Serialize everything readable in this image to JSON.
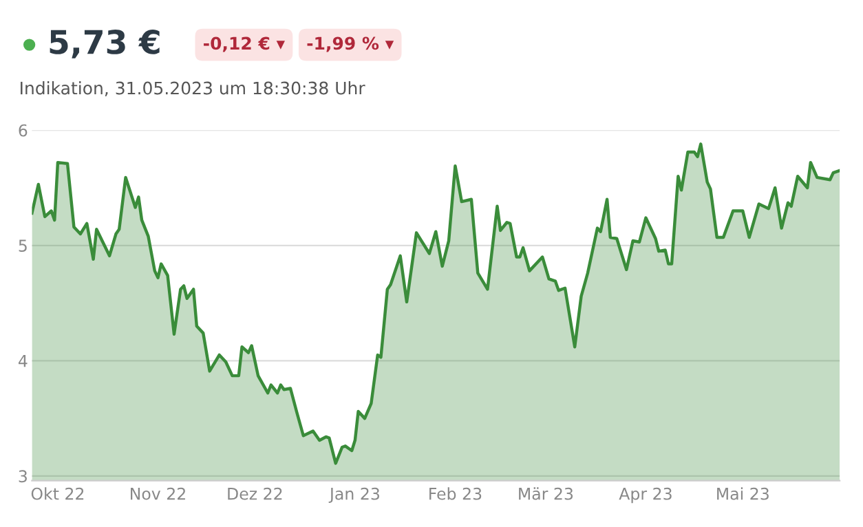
{
  "chart_data": {
    "type": "area",
    "title": "5,73 €",
    "subtitle": "Indikation, 31.05.2023 um 18:30:38 Uhr",
    "annotations": [
      "-0,12 € ▾",
      "-1,99 % ▾"
    ],
    "x": [
      "2022-09-23",
      "2022-09-25",
      "2022-09-27",
      "2022-09-29",
      "2022-09-30",
      "2022-10-01",
      "2022-10-04",
      "2022-10-06",
      "2022-10-08",
      "2022-10-10",
      "2022-10-12",
      "2022-10-13",
      "2022-10-17",
      "2022-10-19",
      "2022-10-20",
      "2022-10-22",
      "2022-10-25",
      "2022-10-26",
      "2022-10-27",
      "2022-10-29",
      "2022-10-31",
      "2022-11-01",
      "2022-11-02",
      "2022-11-04",
      "2022-11-06",
      "2022-11-08",
      "2022-11-09",
      "2022-11-10",
      "2022-11-12",
      "2022-11-13",
      "2022-11-15",
      "2022-11-17",
      "2022-11-20",
      "2022-11-22",
      "2022-11-24",
      "2022-11-26",
      "2022-11-27",
      "2022-11-29",
      "2022-11-30",
      "2022-12-02",
      "2022-12-05",
      "2022-12-06",
      "2022-12-08",
      "2022-12-09",
      "2022-12-10",
      "2022-12-12",
      "2022-12-14",
      "2022-12-16",
      "2022-12-19",
      "2022-12-21",
      "2022-12-23",
      "2022-12-24",
      "2022-12-26",
      "2022-12-28",
      "2022-12-29",
      "2022-12-31",
      "2023-01-01",
      "2023-01-02",
      "2023-01-04",
      "2023-01-06",
      "2023-01-08",
      "2023-01-09",
      "2023-01-11",
      "2023-01-12",
      "2023-01-15",
      "2023-01-17",
      "2023-01-20",
      "2023-01-24",
      "2023-01-26",
      "2023-01-28",
      "2023-01-30",
      "2023-02-01",
      "2023-02-03",
      "2023-02-06",
      "2023-02-08",
      "2023-02-11",
      "2023-02-14",
      "2023-02-15",
      "2023-02-17",
      "2023-02-18",
      "2023-02-20",
      "2023-02-21",
      "2023-02-22",
      "2023-02-24",
      "2023-02-28",
      "2023-03-02",
      "2023-03-04",
      "2023-03-05",
      "2023-03-07",
      "2023-03-10",
      "2023-03-12",
      "2023-03-14",
      "2023-03-17",
      "2023-03-18",
      "2023-03-20",
      "2023-03-21",
      "2023-03-23",
      "2023-03-26",
      "2023-03-28",
      "2023-03-30",
      "2023-04-01",
      "2023-04-04",
      "2023-04-05",
      "2023-04-07",
      "2023-04-08",
      "2023-04-09",
      "2023-04-11",
      "2023-04-12",
      "2023-04-14",
      "2023-04-16",
      "2023-04-17",
      "2023-04-18",
      "2023-04-20",
      "2023-04-21",
      "2023-04-23",
      "2023-04-25",
      "2023-04-28",
      "2023-05-01",
      "2023-05-03",
      "2023-05-06",
      "2023-05-09",
      "2023-05-11",
      "2023-05-13",
      "2023-05-15",
      "2023-05-16",
      "2023-05-18",
      "2023-05-21",
      "2023-05-22",
      "2023-05-24",
      "2023-05-28",
      "2023-05-29",
      "2023-05-31"
    ],
    "series": [
      {
        "color": "#3a8c3a",
        "values": [
          5.28,
          5.53,
          5.25,
          5.3,
          5.22,
          5.72,
          5.71,
          5.16,
          5.1,
          5.19,
          4.88,
          5.14,
          4.91,
          5.1,
          5.14,
          5.59,
          5.33,
          5.42,
          5.22,
          5.08,
          4.78,
          4.72,
          4.84,
          4.74,
          4.23,
          4.62,
          4.65,
          4.54,
          4.62,
          4.3,
          4.24,
          3.91,
          4.05,
          3.99,
          3.87,
          3.87,
          4.12,
          4.07,
          4.13,
          3.87,
          3.72,
          3.79,
          3.72,
          3.79,
          3.75,
          3.76,
          3.55,
          3.35,
          3.39,
          3.31,
          3.34,
          3.33,
          3.11,
          3.25,
          3.26,
          3.22,
          3.31,
          3.56,
          3.5,
          3.63,
          4.05,
          4.03,
          4.62,
          4.66,
          4.91,
          4.51,
          5.11,
          4.93,
          5.12,
          4.82,
          5.04,
          5.69,
          5.38,
          5.4,
          4.76,
          4.62,
          5.34,
          5.13,
          5.2,
          5.19,
          4.9,
          4.9,
          4.98,
          4.78,
          4.9,
          4.71,
          4.69,
          4.61,
          4.63,
          4.12,
          4.56,
          4.76,
          5.15,
          5.12,
          5.4,
          5.07,
          5.06,
          4.79,
          5.04,
          5.03,
          5.24,
          5.06,
          4.95,
          4.96,
          4.84,
          4.84,
          5.6,
          5.48,
          5.81,
          5.81,
          5.77,
          5.88,
          5.55,
          5.49,
          5.07,
          5.07,
          5.3,
          5.3,
          5.07,
          5.36,
          5.32,
          5.5,
          5.15,
          5.37,
          5.34,
          5.6,
          5.5,
          5.72,
          5.59,
          5.57,
          5.63,
          5.65
        ]
      }
    ],
    "xlim": [
      "2022-09-23",
      "2023-05-31"
    ],
    "xticks": [
      {
        "value": "2022-10-01",
        "label": "Okt 22"
      },
      {
        "value": "2022-11-01",
        "label": "Nov 22"
      },
      {
        "value": "2022-12-01",
        "label": "Dez 22"
      },
      {
        "value": "2023-01-01",
        "label": "Jan 23"
      },
      {
        "value": "2023-02-01",
        "label": "Feb 23"
      },
      {
        "value": "2023-03-01",
        "label": "Mär 23"
      },
      {
        "value": "2023-04-01",
        "label": "Apr 23"
      },
      {
        "value": "2023-05-01",
        "label": "Mai 23"
      }
    ],
    "ylim": [
      2.96,
      6
    ],
    "yticks": [
      3,
      4,
      5,
      6
    ],
    "grid": "y"
  }
}
